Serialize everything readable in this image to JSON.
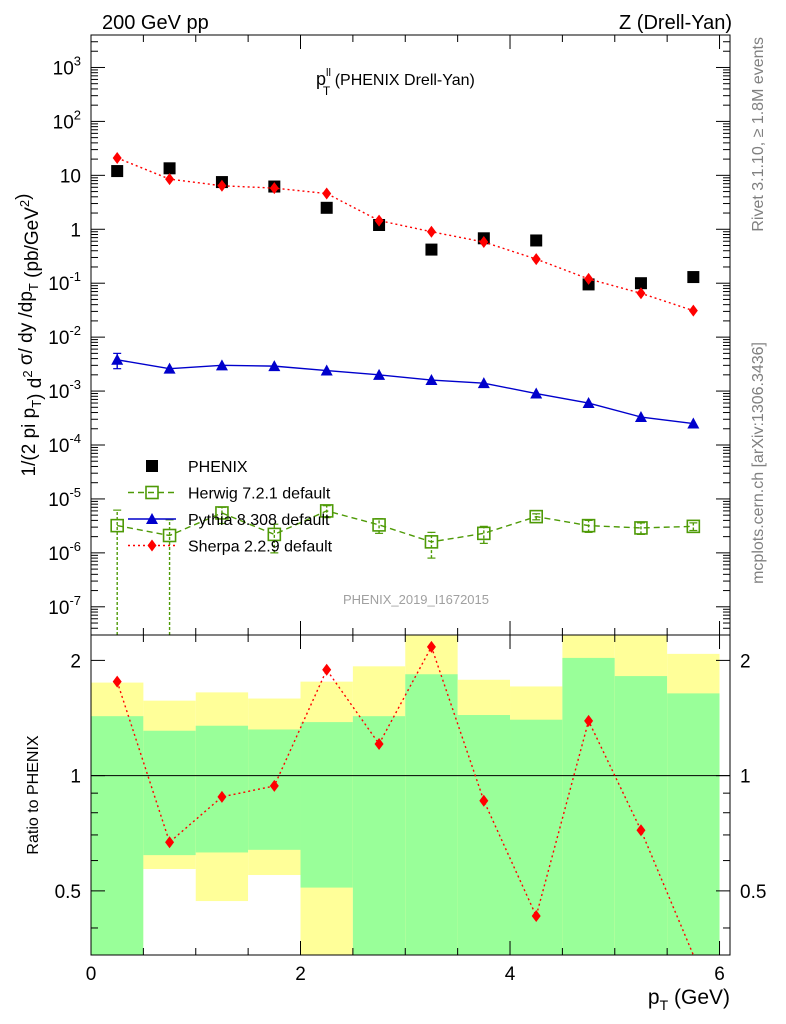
{
  "header": {
    "left": "200 GeV pp",
    "right": "Z (Drell-Yan)"
  },
  "side_labels": {
    "rivet": "Rivet 3.1.10, ≥ 1.8M events",
    "mcplots": "mcplots.cern.ch [arXiv:1306.3436]"
  },
  "chart_data": [
    {
      "type": "scatter",
      "panel": "main",
      "title_main": "p",
      "title_sup": "ll",
      "title_sub": "T",
      "title_rest": " (PHENIX Drell-Yan)",
      "ylabel": "1/(2 pi p_T) d²σ/ dy /dp_T (pb/GeV²)",
      "ylabel_parts": [
        {
          "t": "1/(2 pi p",
          "s": 0
        },
        {
          "t": "T",
          "s": -1
        },
        {
          "t": ") d",
          "s": 0
        },
        {
          "t": "2",
          "s": 1
        },
        {
          "t": " σ/ dy /dp",
          "s": 0
        },
        {
          "t": "T",
          "s": -1
        },
        {
          "t": " (pb/GeV",
          "s": 0
        },
        {
          "t": "2",
          "s": 1
        },
        {
          "t": ")",
          "s": 0
        }
      ],
      "log_y": true,
      "xlim": [
        0,
        6.1
      ],
      "ylim": [
        3e-08,
        4000
      ],
      "y_ticks": [
        {
          "v": 1e-07,
          "base": "10",
          "exp": "-7"
        },
        {
          "v": 1e-06,
          "base": "10",
          "exp": "-6"
        },
        {
          "v": 1e-05,
          "base": "10",
          "exp": "-5"
        },
        {
          "v": 0.0001,
          "base": "10",
          "exp": "-4"
        },
        {
          "v": 0.001,
          "base": "10",
          "exp": "-3"
        },
        {
          "v": 0.01,
          "base": "10",
          "exp": "-2"
        },
        {
          "v": 0.1,
          "base": "10",
          "exp": "-1"
        },
        {
          "v": 1,
          "base": "1",
          "exp": ""
        },
        {
          "v": 10,
          "base": "10",
          "exp": ""
        },
        {
          "v": 100,
          "base": "10",
          "exp": "2"
        },
        {
          "v": 1000,
          "base": "10",
          "exp": "3"
        }
      ],
      "legend": [
        "PHENIX",
        "Herwig 7.2.1 default",
        "Pythia 8.308 default",
        "Sherpa 2.2.9 default"
      ],
      "legend_position": "lower-left",
      "watermark": "PHENIX_2019_I1672015",
      "x": [
        0.25,
        0.75,
        1.25,
        1.75,
        2.25,
        2.75,
        3.25,
        3.75,
        4.25,
        4.75,
        5.25,
        5.75
      ],
      "series": [
        {
          "name": "PHENIX",
          "color": "#000000",
          "marker": "square",
          "values": [
            12,
            13.5,
            7.5,
            6.2,
            2.5,
            1.2,
            0.42,
            0.68,
            0.62,
            0.095,
            0.1,
            0.13
          ]
        },
        {
          "name": "Herwig 7.2.1 default",
          "color": "#4e9a06",
          "marker": "open-square",
          "line": "dashed",
          "values": [
            3.2e-06,
            2.1e-06,
            5.5e-06,
            2.2e-06,
            6e-06,
            3.3e-06,
            1.6e-06,
            2.3e-06,
            4.7e-06,
            3.2e-06,
            2.9e-06,
            3.1e-06
          ],
          "err_lo": [
            3.2e-06,
            2.1e-06,
            2e-06,
            1.2e-06,
            1.5e-06,
            1e-06,
            8e-07,
            8e-07,
            6e-07,
            8e-07,
            7e-07,
            5e-07
          ],
          "err_hi": [
            3e-06,
            2e-06,
            1.5e-06,
            1.2e-06,
            1.5e-06,
            1e-06,
            8e-07,
            8e-07,
            6e-07,
            8e-07,
            7e-07,
            5e-07
          ]
        },
        {
          "name": "Pythia 8.308 default",
          "color": "#0000cc",
          "marker": "triangle",
          "line": "solid",
          "values": [
            0.0038,
            0.0026,
            0.003,
            0.0029,
            0.0024,
            0.002,
            0.0016,
            0.0014,
            0.0009,
            0.0006,
            0.00033,
            0.00025
          ],
          "err_lo": [
            0.0012,
            0,
            0,
            0,
            0,
            0,
            0,
            0,
            0,
            0,
            0,
            0
          ],
          "err_hi": [
            0.0012,
            0,
            0,
            0,
            0,
            0,
            0,
            0,
            0,
            0,
            0,
            0
          ]
        },
        {
          "name": "Sherpa 2.2.9 default",
          "color": "#ff0000",
          "marker": "diamond",
          "line": "dotted",
          "values": [
            21,
            8.5,
            6.4,
            5.8,
            4.6,
            1.45,
            0.9,
            0.58,
            0.28,
            0.12,
            0.065,
            0.031
          ]
        }
      ]
    },
    {
      "type": "area",
      "panel": "ratio",
      "ylabel": "Ratio to PHENIX",
      "xlabel_main": "p",
      "xlabel_sub": "T",
      "xlabel_unit": " (GeV)",
      "xlim": [
        0,
        6.1
      ],
      "ylim": [
        0.34,
        2.33
      ],
      "x_ticks": [
        0,
        2,
        4,
        6
      ],
      "y_ticks": [
        0.5,
        1,
        2
      ],
      "reference_line": 1,
      "bins": [
        [
          0,
          0.5
        ],
        [
          0.5,
          1
        ],
        [
          1,
          1.5
        ],
        [
          1.5,
          2
        ],
        [
          2,
          2.5
        ],
        [
          2.5,
          3
        ],
        [
          3,
          3.5
        ],
        [
          3.5,
          4
        ],
        [
          4,
          4.5
        ],
        [
          4.5,
          5
        ],
        [
          5,
          5.5
        ],
        [
          5.5,
          6
        ]
      ],
      "band_1sigma": {
        "color": "#99ff99",
        "lo": [
          0.34,
          0.62,
          0.63,
          0.64,
          0.51,
          0.34,
          0.34,
          0.34,
          0.34,
          0.34,
          0.34,
          0.34
        ],
        "hi": [
          1.43,
          1.31,
          1.35,
          1.32,
          1.38,
          1.43,
          1.84,
          1.44,
          1.4,
          2.03,
          1.82,
          1.64
        ]
      },
      "band_2sigma": {
        "color": "#ffff99",
        "lo": [
          0.34,
          0.57,
          0.47,
          0.55,
          0.34,
          0.34,
          0.34,
          0.34,
          0.34,
          0.34,
          0.34,
          0.34
        ],
        "hi": [
          1.75,
          1.57,
          1.65,
          1.59,
          1.76,
          1.93,
          2.33,
          1.78,
          1.71,
          2.33,
          2.33,
          2.08
        ]
      },
      "band_gaps": {
        "color": "#ffffff",
        "lo": [
          0.34,
          0.34,
          0.34,
          0.34,
          0.34,
          0.34,
          0.34,
          0.34,
          0.34,
          0.34,
          0.34,
          0.34
        ],
        "hi": [
          0.34,
          0.57,
          0.47,
          0.55,
          0.34,
          0.34,
          0.34,
          0.34,
          0.34,
          0.34,
          0.34,
          0.34
        ]
      },
      "series": [
        {
          "name": "Sherpa 2.2.9 default",
          "color": "#ff0000",
          "marker": "diamond",
          "line": "dotted",
          "values": [
            1.76,
            0.67,
            0.88,
            0.94,
            1.89,
            1.21,
            2.17,
            0.86,
            0.43,
            1.39,
            0.72,
            0.3
          ]
        }
      ]
    }
  ]
}
